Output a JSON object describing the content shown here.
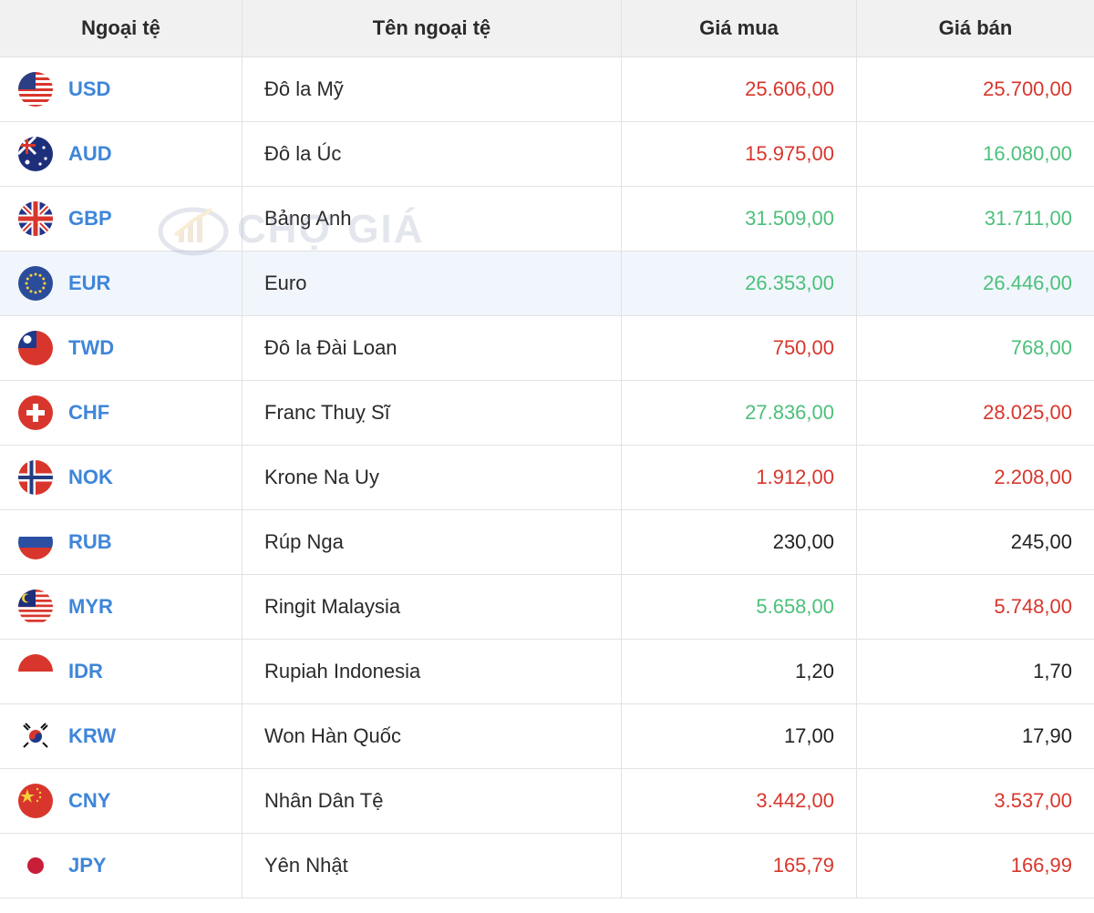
{
  "table": {
    "headers": {
      "code": "Ngoại tệ",
      "name": "Tên ngoại tệ",
      "buy": "Giá mua",
      "sell": "Giá bán"
    },
    "rows": [
      {
        "flag": "us-flag-icon",
        "code": "USD",
        "name": "Đô la Mỹ",
        "buy": "25.606,00",
        "sell": "25.700,00",
        "buy_trend": "red",
        "sell_trend": "red"
      },
      {
        "flag": "au-flag-icon",
        "code": "AUD",
        "name": "Đô la Úc",
        "buy": "15.975,00",
        "sell": "16.080,00",
        "buy_trend": "red",
        "sell_trend": "green"
      },
      {
        "flag": "gb-flag-icon",
        "code": "GBP",
        "name": "Bảng Anh",
        "buy": "31.509,00",
        "sell": "31.711,00",
        "buy_trend": "green",
        "sell_trend": "green"
      },
      {
        "flag": "eu-flag-icon",
        "code": "EUR",
        "name": "Euro",
        "buy": "26.353,00",
        "sell": "26.446,00",
        "buy_trend": "green",
        "sell_trend": "green",
        "highlight": true
      },
      {
        "flag": "tw-flag-icon",
        "code": "TWD",
        "name": "Đô la Đài Loan",
        "buy": "750,00",
        "sell": "768,00",
        "buy_trend": "red",
        "sell_trend": "green"
      },
      {
        "flag": "ch-flag-icon",
        "code": "CHF",
        "name": "Franc Thuỵ Sĩ",
        "buy": "27.836,00",
        "sell": "28.025,00",
        "buy_trend": "green",
        "sell_trend": "red"
      },
      {
        "flag": "no-flag-icon",
        "code": "NOK",
        "name": "Krone Na Uy",
        "buy": "1.912,00",
        "sell": "2.208,00",
        "buy_trend": "red",
        "sell_trend": "red"
      },
      {
        "flag": "ru-flag-icon",
        "code": "RUB",
        "name": "Rúp Nga",
        "buy": "230,00",
        "sell": "245,00",
        "buy_trend": "black",
        "sell_trend": "black"
      },
      {
        "flag": "my-flag-icon",
        "code": "MYR",
        "name": "Ringit Malaysia",
        "buy": "5.658,00",
        "sell": "5.748,00",
        "buy_trend": "green",
        "sell_trend": "red"
      },
      {
        "flag": "id-flag-icon",
        "code": "IDR",
        "name": "Rupiah Indonesia",
        "buy": "1,20",
        "sell": "1,70",
        "buy_trend": "black",
        "sell_trend": "black"
      },
      {
        "flag": "kr-flag-icon",
        "code": "KRW",
        "name": "Won Hàn Quốc",
        "buy": "17,00",
        "sell": "17,90",
        "buy_trend": "black",
        "sell_trend": "black"
      },
      {
        "flag": "cn-flag-icon",
        "code": "CNY",
        "name": "Nhân Dân Tệ",
        "buy": "3.442,00",
        "sell": "3.537,00",
        "buy_trend": "red",
        "sell_trend": "red"
      },
      {
        "flag": "jp-flag-icon",
        "code": "JPY",
        "name": "Yên Nhật",
        "buy": "165,79",
        "sell": "166,99",
        "buy_trend": "red",
        "sell_trend": "red"
      }
    ]
  },
  "watermark": {
    "text": "CHỢ GIÁ"
  },
  "colors": {
    "code": "#3f86d9",
    "up": "#4cc07a",
    "down": "#d8362c",
    "neutral": "#222222"
  }
}
